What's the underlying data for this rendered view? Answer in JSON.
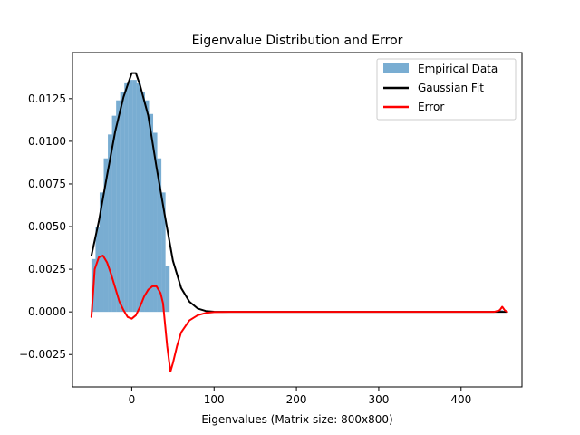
{
  "chart_data": {
    "type": "bar",
    "title": "Eigenvalue Distribution and Error",
    "xlabel": "Eigenvalues (Matrix size: 800x800)",
    "ylabel": "",
    "xlim": [
      -72,
      474
    ],
    "ylim": [
      -0.0044,
      0.0152
    ],
    "xticks": [
      0,
      100,
      200,
      300,
      400
    ],
    "xtick_labels": [
      "0",
      "100",
      "200",
      "300",
      "400"
    ],
    "yticks": [
      -0.0025,
      0.0,
      0.0025,
      0.005,
      0.0075,
      0.01,
      0.0125
    ],
    "ytick_labels": [
      "−0.0025",
      "0.0000",
      "0.0025",
      "0.0050",
      "0.0075",
      "0.0100",
      "0.0125"
    ],
    "legend_position": "top-right",
    "grid": false,
    "colors": {
      "histogram": "#1f77b4",
      "fit": "#000000",
      "error": "#ff0000"
    },
    "histogram": {
      "name": "Empirical Data",
      "bin_edges": [
        -49,
        -44,
        -39,
        -34,
        -29,
        -24,
        -19,
        -14,
        -9,
        -4,
        1,
        6,
        11,
        16,
        21,
        26,
        31,
        36,
        41,
        46
      ],
      "values": [
        0.0031,
        0.005,
        0.007,
        0.009,
        0.0104,
        0.0115,
        0.0124,
        0.0129,
        0.0134,
        0.0136,
        0.0136,
        0.0134,
        0.0129,
        0.0124,
        0.0116,
        0.0105,
        0.009,
        0.007,
        0.0027
      ]
    },
    "histogram_tail": {
      "bin_edges": [
        446,
        451
      ],
      "values": [
        0.0001
      ]
    },
    "series": [
      {
        "name": "Gaussian Fit",
        "x": [
          -49,
          -40,
          -30,
          -20,
          -10,
          0,
          5,
          10,
          20,
          30,
          40,
          50,
          60,
          70,
          80,
          90,
          100,
          110,
          120,
          140,
          200,
          300,
          400,
          456
        ],
        "y": [
          0.0033,
          0.0053,
          0.008,
          0.0106,
          0.0126,
          0.014,
          0.014,
          0.0133,
          0.0115,
          0.0085,
          0.0057,
          0.003,
          0.0014,
          0.0006,
          0.0002,
          5e-05,
          1e-05,
          0.0,
          0.0,
          0.0,
          0.0,
          0.0,
          0.0,
          0.0
        ]
      },
      {
        "name": "Error",
        "x": [
          -49,
          -45,
          -40,
          -35,
          -30,
          -25,
          -20,
          -15,
          -10,
          -5,
          0,
          5,
          10,
          15,
          20,
          25,
          30,
          35,
          38,
          40,
          43,
          47,
          50,
          55,
          60,
          70,
          80,
          90,
          100,
          120,
          200,
          300,
          400,
          440,
          447,
          450,
          453,
          456
        ],
        "y": [
          -0.0003,
          0.0025,
          0.0032,
          0.0033,
          0.0029,
          0.0022,
          0.0014,
          0.0006,
          0.0001,
          -0.0003,
          -0.0004,
          -0.0002,
          0.0003,
          0.0009,
          0.0013,
          0.0015,
          0.0015,
          0.0011,
          0.0005,
          -0.0005,
          -0.002,
          -0.0035,
          -0.003,
          -0.002,
          -0.0012,
          -0.0005,
          -0.0002,
          -6e-05,
          -1e-05,
          0.0,
          0.0,
          0.0,
          0.0,
          0.0,
          0.0001,
          0.0003,
          0.0001,
          0.0
        ]
      }
    ],
    "legend": [
      "Empirical Data",
      "Gaussian Fit",
      "Error"
    ]
  }
}
